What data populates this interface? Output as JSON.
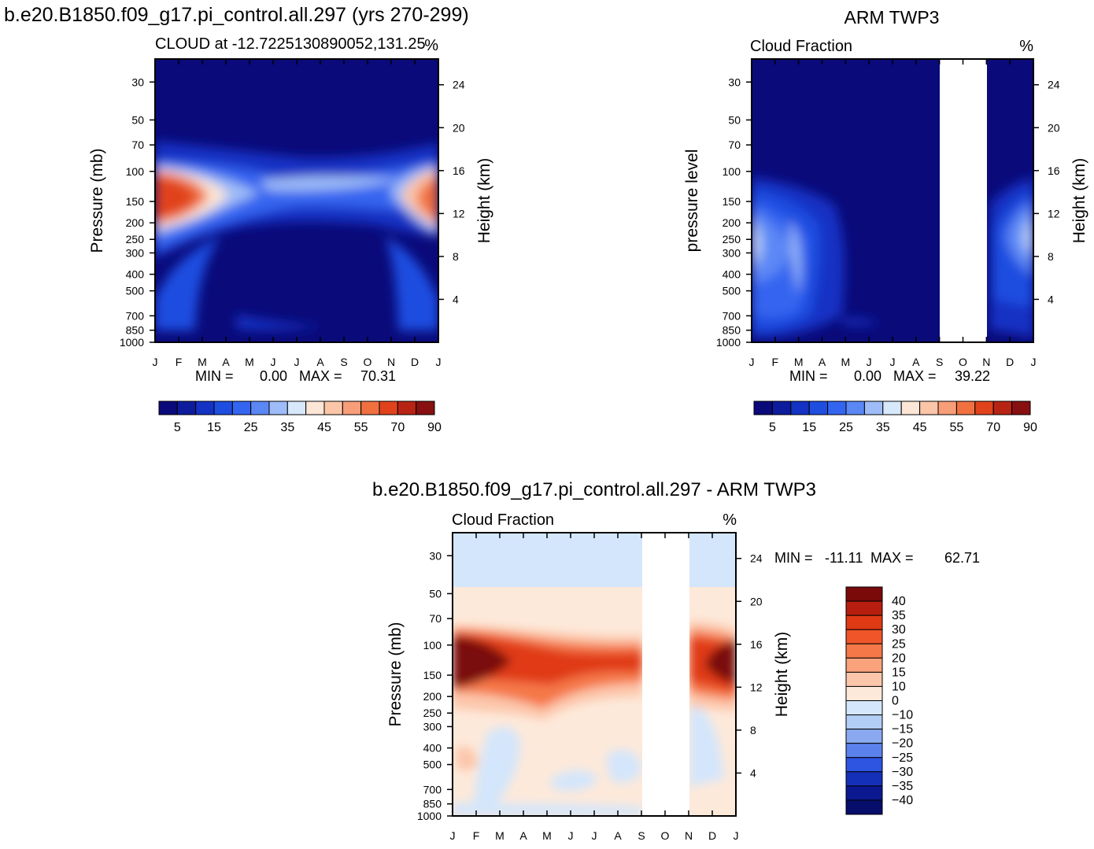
{
  "header": {
    "case_title": "b.e20.B1850.f09_g17.pi_control.all.297 (yrs 270-299)",
    "obs_title": "ARM TWP3",
    "diff_title": "b.e20.B1850.f09_g17.pi_control.all.297 - ARM TWP3"
  },
  "chart_data": [
    {
      "id": "model",
      "type": "heatmap",
      "subtitle_left": "CLOUD at -12.7225130890052,131.25",
      "subtitle_right": "%",
      "ylabel_left": "Pressure (mb)",
      "ylabel_right": "Height (km)",
      "months": [
        "J",
        "F",
        "M",
        "A",
        "M",
        "J",
        "J",
        "A",
        "S",
        "O",
        "N",
        "D",
        "J"
      ],
      "pressure_ticks": [
        30,
        50,
        70,
        100,
        150,
        200,
        250,
        300,
        400,
        500,
        700,
        850,
        1000
      ],
      "height_ticks": [
        24,
        20,
        16,
        12,
        8,
        4
      ],
      "stats": {
        "min_label": "MIN =",
        "min": "0.00",
        "max_label": "MAX =",
        "max": "70.31"
      },
      "colorbar_ticks": [
        "5",
        "15",
        "25",
        "35",
        "45",
        "55",
        "70",
        "90"
      ],
      "colorbar_colors": [
        "#0a0a7a",
        "#0d1c9c",
        "#1432c4",
        "#1e4ee0",
        "#3465f0",
        "#5b87f5",
        "#9ebcf7",
        "#d8e8fb",
        "#fde6d6",
        "#fbc5a8",
        "#f79d78",
        "#f0703f",
        "#e0431c",
        "#b82414",
        "#881010"
      ]
    },
    {
      "id": "obs",
      "type": "heatmap",
      "subtitle_left": "Cloud Fraction",
      "subtitle_right": "%",
      "ylabel_left": "pressure level",
      "ylabel_right": "Height (km)",
      "months": [
        "J",
        "F",
        "M",
        "A",
        "M",
        "J",
        "J",
        "A",
        "S",
        "O",
        "N",
        "D",
        "J"
      ],
      "pressure_ticks": [
        30,
        50,
        70,
        100,
        150,
        200,
        250,
        300,
        400,
        500,
        700,
        850,
        1000
      ],
      "height_ticks": [
        24,
        20,
        16,
        12,
        8,
        4
      ],
      "stats": {
        "min_label": "MIN =",
        "min": "0.00",
        "max_label": "MAX =",
        "max": "39.22"
      },
      "colorbar_ticks": [
        "5",
        "15",
        "25",
        "35",
        "45",
        "55",
        "70",
        "90"
      ],
      "colorbar_colors": [
        "#0a0a7a",
        "#0d1c9c",
        "#1432c4",
        "#1e4ee0",
        "#3465f0",
        "#5b87f5",
        "#9ebcf7",
        "#d8e8fb",
        "#fde6d6",
        "#fbc5a8",
        "#f79d78",
        "#f0703f",
        "#e0431c",
        "#b82414",
        "#881010"
      ],
      "missing_months": [
        "S",
        "O",
        "N"
      ]
    },
    {
      "id": "diff",
      "type": "heatmap",
      "subtitle_left": "Cloud Fraction",
      "subtitle_right": "%",
      "ylabel_left": "Pressure (mb)",
      "ylabel_right": "Height (km)",
      "months": [
        "J",
        "F",
        "M",
        "A",
        "M",
        "J",
        "J",
        "A",
        "S",
        "O",
        "N",
        "D",
        "J"
      ],
      "pressure_ticks": [
        30,
        50,
        70,
        100,
        150,
        200,
        250,
        300,
        400,
        500,
        700,
        850,
        1000
      ],
      "height_ticks": [
        24,
        20,
        16,
        12,
        8,
        4
      ],
      "stats": {
        "min_label": "MIN =",
        "min": "-11.11",
        "max_label": "MAX =",
        "max": "62.71"
      },
      "colorbar_ticks": [
        "40",
        "35",
        "30",
        "25",
        "20",
        "15",
        "10",
        "0",
        "-10",
        "-15",
        "-20",
        "-25",
        "-30",
        "-35",
        "-40"
      ],
      "colorbar_colors": [
        "#7a0a0a",
        "#b81e10",
        "#e03a14",
        "#f0552a",
        "#f57848",
        "#f9a27c",
        "#fcc6aa",
        "#fde9da",
        "#d4e6fb",
        "#b2cdf6",
        "#8aa9f0",
        "#5b82ec",
        "#2e54e2",
        "#1530b8",
        "#0b1890",
        "#070d6a"
      ],
      "missing_months": [
        "S",
        "O",
        "N"
      ]
    }
  ]
}
